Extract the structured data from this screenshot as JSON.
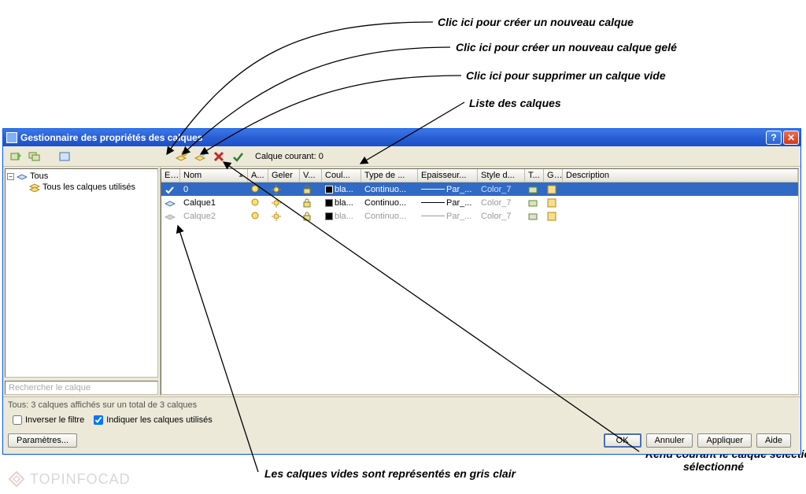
{
  "annotations": {
    "a1": "Clic ici pour créer un nouveau calque",
    "a2": "Clic ici pour créer un nouveau calque gelé",
    "a3": "Clic ici pour supprimer un calque vide",
    "a4": "Liste des calques",
    "a5": "Les calques vides sont représentés en gris clair",
    "a6": "Rend courant le calque sélectionné",
    "a6b": "sélectionné"
  },
  "window": {
    "title": "Gestionnaire des propriétés des calques"
  },
  "toolbar": {
    "current_layer_label": "Calque courant: 0"
  },
  "tree": {
    "root": "Tous",
    "child": "Tous les calques utilisés",
    "search_placeholder": "Rechercher le calque"
  },
  "columns": {
    "stat": "E...",
    "nom": "Nom",
    "a": "A...",
    "geler": "Geler",
    "v": "V...",
    "coul": "Coul...",
    "type": "Type de ...",
    "ep": "Epaisseur...",
    "style": "Style d...",
    "t": "T...",
    "g": "G...",
    "desc": "Description"
  },
  "rows": [
    {
      "nom": "0",
      "coul": "bla...",
      "type": "Continuo...",
      "ep": "Par_...",
      "style": "Color_7",
      "selected": true,
      "faded": false
    },
    {
      "nom": "Calque1",
      "coul": "bla...",
      "type": "Continuo...",
      "ep": "Par_...",
      "style": "Color_7",
      "selected": false,
      "faded": false
    },
    {
      "nom": "Calque2",
      "coul": "bla...",
      "type": "Continuo...",
      "ep": "Par_...",
      "style": "Color_7",
      "selected": false,
      "faded": true
    }
  ],
  "status": {
    "text": "Tous: 3 calques affichés sur un total de 3 calques"
  },
  "filters": {
    "inverse": "Inverser le filtre",
    "indiquer": "Indiquer les calques utilisés",
    "params": "Paramètres..."
  },
  "buttons": {
    "ok": "OK",
    "cancel": "Annuler",
    "apply": "Appliquer",
    "help": "Aide"
  },
  "watermark": "TOPINFOCAD",
  "colors": {
    "titlebar_top": "#3b78e7",
    "titlebar_bottom": "#1950c9",
    "window_bg": "#ece9d8",
    "selection": "#316ac5",
    "chrome_border": "#c0bca8",
    "faded_text": "#9a9a9a",
    "arrow": "#000000"
  }
}
